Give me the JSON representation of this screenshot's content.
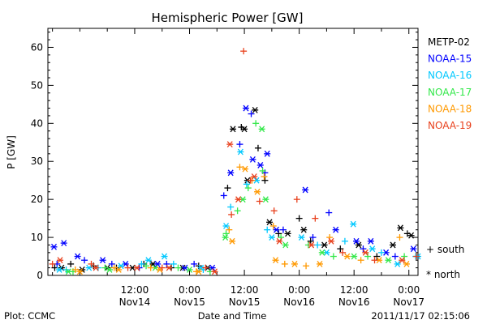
{
  "chart_data": {
    "type": "scatter",
    "title": "Hemispheric Power [GW]",
    "ylabel": "P [GW]",
    "xlabel": "Date and Time",
    "xlim": [
      "2011-11-13T17:00",
      "2011-11-17T02:00"
    ],
    "ylim": [
      0,
      65
    ],
    "y_ticks": [
      0,
      10,
      20,
      30,
      40,
      50,
      60
    ],
    "x_ticks": [
      {
        "t": "2011-11-13T18:00",
        "label": "",
        "sublabel": ""
      },
      {
        "t": "2011-11-14T00:00",
        "label": "",
        "sublabel": ""
      },
      {
        "t": "2011-11-14T06:00",
        "label": "",
        "sublabel": ""
      },
      {
        "t": "2011-11-14T12:00",
        "label": "12:00",
        "sublabel": "Nov14"
      },
      {
        "t": "2011-11-14T18:00",
        "label": "",
        "sublabel": ""
      },
      {
        "t": "2011-11-15T00:00",
        "label": "0:00",
        "sublabel": "Nov15"
      },
      {
        "t": "2011-11-15T06:00",
        "label": "",
        "sublabel": ""
      },
      {
        "t": "2011-11-15T12:00",
        "label": "12:00",
        "sublabel": "Nov15"
      },
      {
        "t": "2011-11-15T18:00",
        "label": "",
        "sublabel": ""
      },
      {
        "t": "2011-11-16T00:00",
        "label": "0:00",
        "sublabel": "Nov16"
      },
      {
        "t": "2011-11-16T06:00",
        "label": "",
        "sublabel": ""
      },
      {
        "t": "2011-11-16T12:00",
        "label": "12:00",
        "sublabel": "Nov16"
      },
      {
        "t": "2011-11-16T18:00",
        "label": "",
        "sublabel": ""
      },
      {
        "t": "2011-11-17T00:00",
        "label": "0:00",
        "sublabel": "Nov17"
      }
    ],
    "marker_legend": [
      {
        "symbol": "+",
        "label": "south"
      },
      {
        "symbol": "*",
        "label": "north"
      }
    ],
    "series": [
      {
        "name": "METP-02",
        "color": "#000000",
        "south": [
          [
            "2011-11-13T18:30",
            2
          ],
          [
            "2011-11-13T22:00",
            3
          ],
          [
            "2011-11-14T03:00",
            2.5
          ],
          [
            "2011-11-14T08:00",
            2
          ],
          [
            "2011-11-14T14:00",
            3
          ],
          [
            "2011-11-14T20:00",
            2
          ],
          [
            "2011-11-15T02:00",
            2.5
          ],
          [
            "2011-11-15T08:20",
            23
          ],
          [
            "2011-11-15T11:20",
            39
          ],
          [
            "2011-11-15T15:00",
            33.5
          ],
          [
            "2011-11-15T16:30",
            25
          ],
          [
            "2011-11-15T19:30",
            11
          ],
          [
            "2011-11-16T00:00",
            15
          ],
          [
            "2011-11-16T02:30",
            9
          ],
          [
            "2011-11-16T09:00",
            7
          ],
          [
            "2011-11-16T17:00",
            5
          ],
          [
            "2011-11-16T23:40",
            11
          ]
        ],
        "north": [
          [
            "2011-11-13T20:00",
            2
          ],
          [
            "2011-11-14T00:30",
            1.5
          ],
          [
            "2011-11-14T06:00",
            2
          ],
          [
            "2011-11-14T11:30",
            2
          ],
          [
            "2011-11-14T16:00",
            3
          ],
          [
            "2011-11-14T22:30",
            2
          ],
          [
            "2011-11-15T04:00",
            2
          ],
          [
            "2011-11-15T09:30",
            38.5
          ],
          [
            "2011-11-15T12:00",
            38.5
          ],
          [
            "2011-11-15T14:20",
            43.5
          ],
          [
            "2011-11-15T12:40",
            25
          ],
          [
            "2011-11-15T17:30",
            14
          ],
          [
            "2011-11-15T21:30",
            11
          ],
          [
            "2011-11-16T01:00",
            12
          ],
          [
            "2011-11-16T05:30",
            8
          ],
          [
            "2011-11-16T13:00",
            8
          ],
          [
            "2011-11-16T20:30",
            8
          ],
          [
            "2011-11-16T22:10",
            12.5
          ],
          [
            "2011-11-17T00:30",
            10.5
          ]
        ]
      },
      {
        "name": "NOAA-15",
        "color": "#0000ff",
        "south": [
          [
            "2011-11-13T19:00",
            3
          ],
          [
            "2011-11-14T01:00",
            4
          ],
          [
            "2011-11-14T07:00",
            3
          ],
          [
            "2011-11-14T13:00",
            2
          ],
          [
            "2011-11-14T19:00",
            3
          ],
          [
            "2011-11-15T01:00",
            3
          ],
          [
            "2011-11-15T07:30",
            21
          ],
          [
            "2011-11-15T11:00",
            34.5
          ],
          [
            "2011-11-15T13:30",
            42.5
          ],
          [
            "2011-11-15T16:30",
            27
          ],
          [
            "2011-11-15T20:30",
            12
          ],
          [
            "2011-11-16T03:00",
            10
          ],
          [
            "2011-11-16T06:30",
            16.5
          ],
          [
            "2011-11-16T14:00",
            7
          ],
          [
            "2011-11-16T21:00",
            5
          ]
        ],
        "north": [
          [
            "2011-11-13T18:20",
            7.5
          ],
          [
            "2011-11-13T20:30",
            8.5
          ],
          [
            "2011-11-13T23:30",
            5
          ],
          [
            "2011-11-14T05:00",
            4
          ],
          [
            "2011-11-14T10:00",
            3
          ],
          [
            "2011-11-14T17:00",
            3
          ],
          [
            "2011-11-14T23:00",
            2
          ],
          [
            "2011-11-15T05:00",
            2
          ],
          [
            "2011-11-15T09:00",
            27
          ],
          [
            "2011-11-15T12:20",
            44
          ],
          [
            "2011-11-15T13:50",
            30.5
          ],
          [
            "2011-11-15T15:30",
            29
          ],
          [
            "2011-11-15T17:00",
            32
          ],
          [
            "2011-11-15T19:00",
            12
          ],
          [
            "2011-11-16T01:20",
            22.5
          ],
          [
            "2011-11-16T08:00",
            12
          ],
          [
            "2011-11-16T12:30",
            9
          ],
          [
            "2011-11-16T15:40",
            9
          ],
          [
            "2011-11-16T19:00",
            6
          ],
          [
            "2011-11-17T01:00",
            7
          ]
        ]
      },
      {
        "name": "NOAA-16",
        "color": "#00c8ff",
        "south": [
          [
            "2011-11-13T21:00",
            1.5
          ],
          [
            "2011-11-14T04:00",
            2
          ],
          [
            "2011-11-14T13:30",
            3
          ],
          [
            "2011-11-14T20:30",
            3
          ],
          [
            "2011-11-15T03:00",
            1.5
          ],
          [
            "2011-11-15T09:00",
            18
          ],
          [
            "2011-11-15T12:30",
            24
          ],
          [
            "2011-11-15T17:00",
            12
          ],
          [
            "2011-11-16T04:00",
            8
          ],
          [
            "2011-11-16T10:00",
            9
          ],
          [
            "2011-11-16T18:00",
            6
          ],
          [
            "2011-11-17T01:30",
            5
          ]
        ],
        "north": [
          [
            "2011-11-13T19:30",
            1.5
          ],
          [
            "2011-11-14T02:00",
            2
          ],
          [
            "2011-11-14T09:00",
            2.5
          ],
          [
            "2011-11-14T15:00",
            4
          ],
          [
            "2011-11-14T18:30",
            5
          ],
          [
            "2011-11-15T02:30",
            2
          ],
          [
            "2011-11-15T08:00",
            13
          ],
          [
            "2011-11-15T11:10",
            32.5
          ],
          [
            "2011-11-15T14:40",
            25
          ],
          [
            "2011-11-15T18:00",
            10
          ],
          [
            "2011-11-16T00:30",
            10
          ],
          [
            "2011-11-16T06:00",
            6
          ],
          [
            "2011-11-16T11:50",
            13.5
          ],
          [
            "2011-11-16T16:00",
            7
          ],
          [
            "2011-11-16T21:30",
            3
          ],
          [
            "2011-11-17T02:00",
            5
          ]
        ]
      },
      {
        "name": "NOAA-17",
        "color": "#33e84a",
        "south": [
          [
            "2011-11-13T22:30",
            1
          ],
          [
            "2011-11-14T05:30",
            2
          ],
          [
            "2011-11-14T14:30",
            2.5
          ],
          [
            "2011-11-14T21:30",
            2
          ],
          [
            "2011-11-15T04:30",
            1
          ],
          [
            "2011-11-15T08:00",
            11
          ],
          [
            "2011-11-15T10:30",
            17
          ],
          [
            "2011-11-15T12:50",
            23
          ],
          [
            "2011-11-15T14:30",
            40
          ],
          [
            "2011-11-15T16:00",
            27.5
          ],
          [
            "2011-11-15T20:00",
            10
          ],
          [
            "2011-11-16T02:00",
            8
          ],
          [
            "2011-11-16T07:30",
            5
          ],
          [
            "2011-11-16T15:00",
            5
          ],
          [
            "2011-11-16T23:00",
            5
          ]
        ],
        "north": [
          [
            "2011-11-13T21:30",
            1
          ],
          [
            "2011-11-14T06:30",
            1.5
          ],
          [
            "2011-11-14T16:30",
            2
          ],
          [
            "2011-11-15T00:00",
            1.5
          ],
          [
            "2011-11-15T07:50",
            10
          ],
          [
            "2011-11-15T11:40",
            20
          ],
          [
            "2011-11-15T15:50",
            38.5
          ],
          [
            "2011-11-15T16:40",
            20
          ],
          [
            "2011-11-15T21:00",
            8
          ],
          [
            "2011-11-16T05:00",
            6
          ],
          [
            "2011-11-16T12:00",
            5
          ],
          [
            "2011-11-16T19:30",
            4
          ]
        ]
      },
      {
        "name": "NOAA-18",
        "color": "#ff9900",
        "south": [
          [
            "2011-11-13T23:00",
            1.5
          ],
          [
            "2011-11-14T07:30",
            2
          ],
          [
            "2011-11-14T15:30",
            2
          ],
          [
            "2011-11-15T01:30",
            1
          ],
          [
            "2011-11-15T08:40",
            12
          ],
          [
            "2011-11-15T11:00",
            28.5
          ],
          [
            "2011-11-15T13:40",
            25
          ],
          [
            "2011-11-15T16:20",
            26
          ],
          [
            "2011-11-15T18:20",
            13
          ],
          [
            "2011-11-15T20:50",
            3
          ],
          [
            "2011-11-16T01:30",
            2.5
          ],
          [
            "2011-11-16T06:40",
            10
          ],
          [
            "2011-11-16T13:30",
            4
          ],
          [
            "2011-11-16T22:00",
            10
          ]
        ],
        "north": [
          [
            "2011-11-14T00:00",
            1
          ],
          [
            "2011-11-14T08:30",
            1.5
          ],
          [
            "2011-11-14T17:30",
            1.5
          ],
          [
            "2011-11-15T02:00",
            1
          ],
          [
            "2011-11-15T09:20",
            9
          ],
          [
            "2011-11-15T12:10",
            28
          ],
          [
            "2011-11-15T14:50",
            22
          ],
          [
            "2011-11-15T18:50",
            4
          ],
          [
            "2011-11-15T23:00",
            3
          ],
          [
            "2011-11-16T04:30",
            3
          ],
          [
            "2011-11-16T10:30",
            5
          ],
          [
            "2011-11-16T17:30",
            4
          ],
          [
            "2011-11-16T23:30",
            3
          ]
        ]
      },
      {
        "name": "NOAA-19",
        "color": "#e8401c",
        "south": [
          [
            "2011-11-13T18:00",
            3
          ],
          [
            "2011-11-14T02:30",
            3
          ],
          [
            "2011-11-14T10:30",
            2
          ],
          [
            "2011-11-14T18:00",
            2
          ],
          [
            "2011-11-15T03:30",
            2
          ],
          [
            "2011-11-15T09:10",
            16
          ],
          [
            "2011-11-15T11:50",
            59
          ],
          [
            "2011-11-15T13:20",
            25
          ],
          [
            "2011-11-15T15:20",
            19.5
          ],
          [
            "2011-11-15T18:30",
            17
          ],
          [
            "2011-11-15T23:30",
            20
          ],
          [
            "2011-11-16T03:30",
            15
          ],
          [
            "2011-11-16T09:30",
            6
          ],
          [
            "2011-11-16T16:30",
            4
          ],
          [
            "2011-11-17T01:40",
            5
          ]
        ],
        "north": [
          [
            "2011-11-13T19:40",
            4
          ],
          [
            "2011-11-14T03:30",
            2
          ],
          [
            "2011-11-14T12:30",
            2
          ],
          [
            "2011-11-14T19:30",
            2
          ],
          [
            "2011-11-15T05:30",
            1
          ],
          [
            "2011-11-15T08:50",
            34.5
          ],
          [
            "2011-11-15T10:40",
            20
          ],
          [
            "2011-11-15T14:10",
            26
          ],
          [
            "2011-11-15T19:40",
            9
          ],
          [
            "2011-11-16T02:40",
            8
          ],
          [
            "2011-11-16T07:00",
            9
          ],
          [
            "2011-11-16T14:30",
            6
          ],
          [
            "2011-11-16T22:30",
            4
          ]
        ]
      }
    ]
  },
  "footer": {
    "left": "Plot: CCMC",
    "center": "Date and Time",
    "right": "2011/11/17 02:15:06"
  }
}
